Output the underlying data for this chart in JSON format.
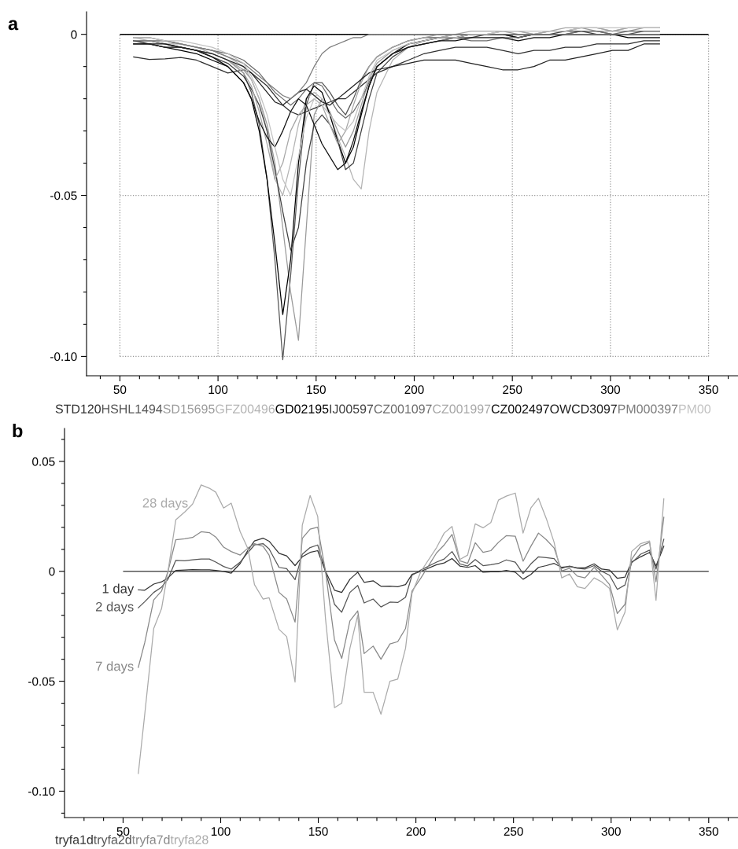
{
  "chart_data": [
    {
      "type": "line",
      "title": "a",
      "legend": "bottom",
      "grid": true,
      "xlim": [
        33,
        365
      ],
      "ylim": [
        -0.106,
        0.007
      ],
      "xticks": [
        {
          "value": 40,
          "label": null
        },
        50,
        {
          "value": 60,
          "label": null
        },
        {
          "value": 70,
          "label": null
        },
        {
          "value": 80,
          "label": null
        },
        {
          "value": 90,
          "label": null
        },
        100,
        {
          "value": 110,
          "label": null
        },
        {
          "value": 120,
          "label": null
        },
        {
          "value": 130,
          "label": null
        },
        {
          "value": 140,
          "label": null
        },
        150,
        {
          "value": 160,
          "label": null
        },
        {
          "value": 170,
          "label": null
        },
        {
          "value": 180,
          "label": null
        },
        {
          "value": 190,
          "label": null
        },
        200,
        {
          "value": 210,
          "label": null
        },
        {
          "value": 220,
          "label": null
        },
        {
          "value": 230,
          "label": null
        },
        {
          "value": 240,
          "label": null
        },
        250,
        {
          "value": 260,
          "label": null
        },
        {
          "value": 270,
          "label": null
        },
        {
          "value": 280,
          "label": null
        },
        {
          "value": 290,
          "label": null
        },
        300,
        {
          "value": 310,
          "label": null
        },
        {
          "value": 320,
          "label": null
        },
        {
          "value": 330,
          "label": null
        },
        {
          "value": 340,
          "label": null
        },
        350,
        {
          "value": 360,
          "label": null
        }
      ],
      "yticks": [
        0,
        {
          "value": -0.01,
          "label": null
        },
        {
          "value": -0.02,
          "label": null
        },
        {
          "value": -0.03,
          "label": null
        },
        {
          "value": -0.04,
          "label": null
        },
        {
          "value": -0.05,
          "label": "-0.05"
        },
        {
          "value": -0.06,
          "label": null
        },
        {
          "value": -0.07,
          "label": null
        },
        {
          "value": -0.08,
          "label": null
        },
        {
          "value": -0.09,
          "label": null
        },
        {
          "value": -0.1,
          "label": "-0.10"
        }
      ],
      "ref_lines": [
        {
          "axis": "y",
          "value": 0,
          "color": "#000000"
        }
      ],
      "x": [
        57,
        65,
        73,
        81,
        89,
        97,
        105,
        113,
        117,
        121,
        125,
        129,
        133,
        137,
        141,
        145,
        149,
        153,
        157,
        161,
        165,
        169,
        173,
        177,
        181,
        189,
        197,
        205,
        213,
        221,
        229,
        237,
        245,
        253,
        261,
        269,
        277,
        285,
        293,
        301,
        309,
        317,
        325
      ],
      "series": [
        {
          "name": "STD120",
          "color": "#303030",
          "values": [
            -0.007,
            -0.0078,
            -0.0076,
            -0.0072,
            -0.008,
            -0.01,
            -0.012,
            -0.011,
            -0.012,
            -0.014,
            -0.016,
            -0.019,
            -0.022,
            -0.024,
            -0.025,
            -0.024,
            -0.023,
            -0.022,
            -0.021,
            -0.02,
            -0.02,
            -0.018,
            -0.016,
            -0.014,
            -0.012,
            -0.01,
            -0.008,
            -0.006,
            -0.005,
            -0.004,
            -0.004,
            -0.004,
            -0.005,
            -0.006,
            -0.005,
            -0.005,
            -0.004,
            -0.004,
            -0.003,
            -0.003,
            -0.003,
            -0.002,
            -0.002
          ]
        },
        {
          "name": "HSHL1494",
          "color": "#555555",
          "values": [
            -0.002,
            -0.002,
            -0.003,
            -0.004,
            -0.005,
            -0.006,
            -0.008,
            -0.012,
            -0.018,
            -0.028,
            -0.045,
            -0.07,
            -0.101,
            -0.075,
            -0.045,
            -0.022,
            -0.015,
            -0.015,
            -0.018,
            -0.022,
            -0.025,
            -0.02,
            -0.014,
            -0.01,
            -0.007,
            -0.004,
            -0.002,
            -0.001,
            -0.001,
            0.0,
            0.0,
            0.0,
            0.0,
            -0.001,
            0.0,
            0.0,
            0.0,
            0.001,
            0.001,
            0.0,
            0.0,
            0.001,
            0.001
          ]
        },
        {
          "name": "SD15695",
          "color": "#999999",
          "values": [
            -0.003,
            -0.003,
            -0.004,
            -0.004,
            -0.005,
            -0.006,
            -0.008,
            -0.011,
            -0.014,
            -0.02,
            -0.028,
            -0.04,
            -0.06,
            -0.08,
            -0.095,
            -0.06,
            -0.025,
            -0.02,
            -0.024,
            -0.03,
            -0.035,
            -0.03,
            -0.022,
            -0.014,
            -0.009,
            -0.005,
            -0.003,
            -0.002,
            -0.001,
            -0.001,
            0.0,
            0.0,
            0.001,
            0.0,
            0.0,
            0.001,
            0.001,
            0.002,
            0.001,
            0.001,
            0.001,
            0.002,
            0.002
          ]
        },
        {
          "name": "GFZ00496",
          "color": "#b4b4b4",
          "values": [
            -0.001,
            -0.002,
            -0.002,
            -0.003,
            -0.004,
            -0.005,
            -0.007,
            -0.01,
            -0.014,
            -0.02,
            -0.03,
            -0.045,
            -0.05,
            -0.04,
            -0.028,
            -0.02,
            -0.018,
            -0.02,
            -0.025,
            -0.032,
            -0.038,
            -0.045,
            -0.048,
            -0.03,
            -0.018,
            -0.008,
            -0.004,
            -0.002,
            -0.001,
            0.0,
            0.0,
            0.0,
            0.001,
            0.001,
            0.0,
            0.001,
            0.001,
            0.002,
            0.002,
            0.001,
            0.002,
            0.002,
            0.002
          ]
        },
        {
          "name": "GD02195",
          "color": "#000000",
          "values": [
            -0.003,
            -0.003,
            -0.004,
            -0.005,
            -0.006,
            -0.008,
            -0.01,
            -0.015,
            -0.02,
            -0.03,
            -0.045,
            -0.065,
            -0.087,
            -0.07,
            -0.04,
            -0.02,
            -0.016,
            -0.018,
            -0.025,
            -0.033,
            -0.04,
            -0.035,
            -0.025,
            -0.016,
            -0.01,
            -0.006,
            -0.003,
            -0.002,
            -0.001,
            -0.001,
            0.0,
            0.0,
            0.0,
            -0.001,
            0.0,
            0.0,
            0.0,
            0.0,
            0.0,
            0.0,
            -0.001,
            -0.001,
            -0.001
          ]
        },
        {
          "name": "IJ00597",
          "color": "#404040",
          "values": [
            -0.002,
            -0.002,
            -0.003,
            -0.004,
            -0.005,
            -0.007,
            -0.009,
            -0.013,
            -0.017,
            -0.022,
            -0.03,
            -0.042,
            -0.055,
            -0.067,
            -0.06,
            -0.04,
            -0.028,
            -0.025,
            -0.028,
            -0.033,
            -0.042,
            -0.04,
            -0.03,
            -0.02,
            -0.012,
            -0.007,
            -0.004,
            -0.003,
            -0.002,
            -0.001,
            -0.001,
            0.0,
            0.0,
            0.0,
            0.0,
            0.0,
            0.001,
            0.001,
            0.0,
            0.0,
            0.0,
            0.0,
            0.0
          ]
        },
        {
          "name": "CZ001097",
          "color": "#6c6c6c",
          "values": [
            -0.001,
            -0.001,
            -0.002,
            -0.003,
            -0.004,
            -0.005,
            -0.006,
            -0.008,
            -0.01,
            -0.012,
            -0.015,
            -0.018,
            -0.02,
            -0.022,
            -0.02,
            -0.017,
            -0.015,
            -0.016,
            -0.02,
            -0.024,
            -0.026,
            -0.024,
            -0.02,
            -0.015,
            -0.01,
            -0.006,
            -0.004,
            -0.003,
            -0.002,
            -0.001,
            -0.002,
            -0.002,
            -0.001,
            -0.001,
            0.0,
            0.0,
            0.0,
            0.001,
            0.001,
            0.0,
            0.001,
            0.001,
            0.001
          ]
        },
        {
          "name": "CZ001997",
          "color": "#a6a6a6",
          "values": [
            -0.002,
            -0.002,
            -0.003,
            -0.003,
            -0.004,
            -0.006,
            -0.008,
            -0.012,
            -0.016,
            -0.024,
            -0.034,
            -0.045,
            -0.04,
            -0.03,
            -0.025,
            -0.022,
            -0.02,
            -0.022,
            -0.028,
            -0.034,
            -0.03,
            -0.022,
            -0.015,
            -0.01,
            -0.007,
            -0.004,
            -0.002,
            -0.001,
            0.0,
            0.0,
            0.001,
            0.001,
            0.001,
            0.001,
            0.0,
            0.001,
            0.002,
            0.002,
            0.002,
            0.001,
            0.002,
            0.002,
            0.002
          ]
        },
        {
          "name": "CZ002497",
          "color": "#101010",
          "values": [
            -0.002,
            -0.003,
            -0.003,
            -0.004,
            -0.005,
            -0.007,
            -0.01,
            -0.015,
            -0.02,
            -0.027,
            -0.032,
            -0.035,
            -0.03,
            -0.024,
            -0.02,
            -0.022,
            -0.028,
            -0.034,
            -0.038,
            -0.042,
            -0.04,
            -0.033,
            -0.024,
            -0.016,
            -0.01,
            -0.006,
            -0.004,
            -0.003,
            -0.002,
            -0.002,
            -0.001,
            -0.001,
            -0.001,
            -0.002,
            -0.001,
            -0.001,
            0.0,
            0.0,
            0.0,
            0.0,
            0.0,
            0.0,
            0.0
          ]
        },
        {
          "name": "OWCD3097",
          "color": "#202020",
          "values": [
            -0.003,
            -0.003,
            -0.004,
            -0.004,
            -0.005,
            -0.006,
            -0.008,
            -0.01,
            -0.012,
            -0.015,
            -0.018,
            -0.021,
            -0.022,
            -0.02,
            -0.018,
            -0.017,
            -0.019,
            -0.021,
            -0.022,
            -0.02,
            -0.018,
            -0.016,
            -0.014,
            -0.012,
            -0.011,
            -0.01,
            -0.009,
            -0.008,
            -0.008,
            -0.008,
            -0.009,
            -0.01,
            -0.011,
            -0.011,
            -0.01,
            -0.008,
            -0.008,
            -0.007,
            -0.006,
            -0.005,
            -0.005,
            -0.003,
            -0.003
          ]
        },
        {
          "name": "PM000397",
          "color": "#7c7c7c",
          "values": [
            -0.002,
            -0.002,
            -0.002,
            -0.003,
            -0.004,
            -0.005,
            -0.007,
            -0.009,
            -0.011,
            -0.013,
            -0.015,
            -0.017,
            -0.019,
            -0.02,
            -0.018,
            -0.015,
            -0.01,
            -0.006,
            -0.004,
            -0.003,
            -0.002,
            -0.001,
            -0.001,
            0.0,
            0.0,
            0.0,
            0.0,
            0.0,
            0.0,
            0.0,
            0.0,
            0.0,
            0.0,
            0.0,
            0.0,
            0.0,
            0.0,
            0.0,
            0.0,
            0.0,
            0.0,
            0.0,
            0.0
          ]
        },
        {
          "name": "PM00",
          "color": "#c2c2c2",
          "values": [
            -0.001,
            -0.001,
            -0.002,
            -0.002,
            -0.003,
            -0.004,
            -0.006,
            -0.009,
            -0.013,
            -0.018,
            -0.025,
            -0.035,
            -0.045,
            -0.05,
            -0.038,
            -0.026,
            -0.02,
            -0.022,
            -0.025,
            -0.028,
            -0.03,
            -0.027,
            -0.02,
            -0.013,
            -0.008,
            -0.005,
            -0.003,
            -0.002,
            -0.001,
            -0.001,
            0.0,
            0.0,
            0.001,
            0.001,
            0.001,
            0.001,
            0.001,
            0.002,
            0.002,
            0.002,
            0.002,
            0.002,
            0.002
          ]
        }
      ]
    },
    {
      "type": "line",
      "title": "b",
      "legend": "bottom",
      "xlim": [
        20,
        365
      ],
      "ylim": [
        -0.112,
        0.065
      ],
      "xticks": [
        {
          "value": 30,
          "label": null
        },
        {
          "value": 40,
          "label": null
        },
        50,
        {
          "value": 60,
          "label": null
        },
        {
          "value": 70,
          "label": null
        },
        {
          "value": 80,
          "label": null
        },
        {
          "value": 90,
          "label": null
        },
        100,
        {
          "value": 110,
          "label": null
        },
        {
          "value": 120,
          "label": null
        },
        {
          "value": 130,
          "label": null
        },
        {
          "value": 140,
          "label": null
        },
        150,
        {
          "value": 160,
          "label": null
        },
        {
          "value": 170,
          "label": null
        },
        {
          "value": 180,
          "label": null
        },
        {
          "value": 190,
          "label": null
        },
        200,
        {
          "value": 210,
          "label": null
        },
        {
          "value": 220,
          "label": null
        },
        {
          "value": 230,
          "label": null
        },
        {
          "value": 240,
          "label": null
        },
        250,
        {
          "value": 260,
          "label": null
        },
        {
          "value": 270,
          "label": null
        },
        {
          "value": 280,
          "label": null
        },
        {
          "value": 290,
          "label": null
        },
        300,
        {
          "value": 310,
          "label": null
        },
        {
          "value": 320,
          "label": null
        },
        {
          "value": 330,
          "label": null
        },
        {
          "value": 340,
          "label": null
        },
        350,
        {
          "value": 360,
          "label": null
        }
      ],
      "yticks": [
        {
          "value": 0.06,
          "label": null
        },
        0.05,
        {
          "value": 0.04,
          "label": null
        },
        {
          "value": 0.03,
          "label": null
        },
        {
          "value": 0.02,
          "label": null
        },
        {
          "value": 0.01,
          "label": null
        },
        0,
        {
          "value": -0.01,
          "label": null
        },
        {
          "value": -0.02,
          "label": null
        },
        {
          "value": -0.03,
          "label": null
        },
        {
          "value": -0.04,
          "label": null
        },
        {
          "value": -0.05,
          "label": "-0.05"
        },
        {
          "value": -0.06,
          "label": null
        },
        {
          "value": -0.07,
          "label": null
        },
        {
          "value": -0.08,
          "label": null
        },
        {
          "value": -0.09,
          "label": null
        },
        {
          "value": -0.1,
          "label": "-0.10"
        },
        {
          "value": -0.11,
          "label": null
        }
      ],
      "ref_lines": [
        {
          "axis": "y",
          "value": 0,
          "color": "#555555"
        }
      ],
      "annotations": [
        "1 day",
        "2 days",
        "7 days",
        {
          "text": "28 days",
          "x": 85.6,
          "y": 0.0306
        }
      ],
      "x": [
        57.8,
        61.1,
        65.7,
        69.7,
        73.0,
        77.0,
        81.6,
        85.6,
        90.0,
        94.2,
        97.5,
        101.5,
        105.4,
        110.0,
        114.0,
        117.3,
        121.7,
        124.8,
        129.9,
        133.8,
        138.1,
        141.8,
        145.8,
        149.7,
        153.7,
        158.3,
        162.0,
        166.2,
        170.2,
        173.5,
        178.1,
        182.1,
        186.7,
        190.7,
        194.7,
        198.0,
        202.6,
        210.6,
        214.5,
        218.5,
        222.5,
        226.5,
        230.4,
        234.4,
        238.4,
        242.3,
        246.3,
        250.9,
        254.9,
        258.9,
        262.8,
        266.8,
        270.8,
        274.7,
        278.7,
        282.7,
        286.6,
        291.3,
        295.2,
        299.2,
        303.2,
        307.1,
        310.5,
        315.1,
        319.7,
        323.0,
        327.0
      ],
      "series": [
        {
          "name": "tryfa1d",
          "color": "#333333",
          "values": [
            -0.0084,
            -0.0086,
            -0.0058,
            -0.0048,
            -0.003,
            0.0004,
            0.0006,
            0.0008,
            0.0007,
            0.0007,
            0.0004,
            0.0,
            -0.0008,
            0.0036,
            0.0096,
            0.0138,
            0.0151,
            0.0137,
            0.0082,
            0.007,
            0.0026,
            0.0066,
            0.0086,
            0.0094,
            0.0,
            -0.0086,
            -0.0096,
            -0.0036,
            -0.0004,
            -0.005,
            -0.0043,
            -0.0068,
            -0.0067,
            -0.007,
            -0.006,
            -0.0014,
            0.0,
            0.003,
            0.0038,
            0.0058,
            0.0024,
            0.0018,
            0.0026,
            -0.0004,
            -0.0002,
            -0.0002,
            0.0004,
            -0.0004,
            -0.0036,
            -0.0014,
            0.0018,
            0.0026,
            0.0036,
            0.0018,
            0.0022,
            0.0016,
            0.0016,
            0.0034,
            0.001,
            0.0006,
            -0.0032,
            -0.0026,
            0.0042,
            0.0066,
            0.0086,
            0.0024,
            0.0114
          ]
        },
        {
          "name": "tryfa2d",
          "color": "#555555",
          "values": [
            -0.0166,
            -0.0138,
            -0.0096,
            -0.0072,
            -0.0036,
            0.005,
            0.0048,
            0.0052,
            0.0056,
            0.0056,
            0.0042,
            0.0022,
            0.001,
            0.0042,
            0.0086,
            0.012,
            0.0126,
            0.0102,
            0.0018,
            0.0012,
            -0.0038,
            0.0078,
            0.0108,
            0.012,
            0.0,
            -0.015,
            -0.0186,
            -0.0096,
            -0.0064,
            -0.0144,
            -0.0126,
            -0.0162,
            -0.014,
            -0.0142,
            -0.0118,
            -0.0018,
            0.0006,
            0.0042,
            0.0056,
            0.009,
            0.0034,
            0.0024,
            0.0054,
            0.0026,
            0.003,
            0.0036,
            0.0052,
            0.0042,
            -0.001,
            0.0034,
            0.0066,
            0.0062,
            0.0058,
            0.0014,
            0.0024,
            0.0014,
            0.001,
            0.0026,
            0.0,
            -0.0018,
            -0.0082,
            -0.0062,
            0.0038,
            0.0078,
            0.0096,
            0.001,
            0.0146
          ]
        },
        {
          "name": "tryfa7d",
          "color": "#888888",
          "values": [
            -0.0437,
            -0.0324,
            -0.013,
            -0.009,
            0.0,
            0.0144,
            0.0148,
            0.0154,
            0.018,
            0.0176,
            0.0156,
            0.011,
            0.009,
            0.0074,
            0.0106,
            0.0126,
            0.0114,
            0.0074,
            -0.0096,
            -0.0126,
            -0.0231,
            0.015,
            0.0192,
            0.0201,
            0.0,
            -0.0312,
            -0.0396,
            -0.0226,
            -0.018,
            -0.0374,
            -0.034,
            -0.04,
            -0.033,
            -0.032,
            -0.026,
            -0.009,
            -0.003,
            0.0084,
            0.012,
            0.0168,
            0.0048,
            0.0036,
            0.013,
            0.0086,
            0.0094,
            0.0132,
            0.0162,
            0.016,
            0.0046,
            0.0114,
            0.0174,
            0.0144,
            0.0106,
            0.0002,
            0.0014,
            -0.0022,
            -0.003,
            0.0018,
            -0.0018,
            -0.006,
            -0.0192,
            -0.015,
            0.0054,
            0.0114,
            0.0132,
            -0.0048,
            0.0246
          ]
        },
        {
          "name": "tryfa28",
          "color": "#aaaaaa",
          "values": [
            -0.092,
            -0.065,
            -0.026,
            -0.017,
            0.0,
            0.0234,
            0.027,
            0.0306,
            0.0393,
            0.0378,
            0.036,
            0.0288,
            0.031,
            0.018,
            0.0102,
            -0.006,
            -0.0126,
            -0.012,
            -0.0264,
            -0.0297,
            -0.0504,
            0.021,
            0.0345,
            0.025,
            -0.0216,
            -0.062,
            -0.06,
            -0.035,
            -0.02,
            -0.055,
            -0.055,
            -0.065,
            -0.05,
            -0.049,
            -0.035,
            -0.01,
            0.0,
            0.0108,
            0.0174,
            0.0204,
            0.0054,
            0.0074,
            0.0216,
            0.0198,
            0.0222,
            0.0324,
            0.0342,
            0.0356,
            0.0174,
            0.0288,
            0.0332,
            0.024,
            0.0132,
            -0.003,
            -0.0012,
            -0.007,
            -0.0078,
            -0.003,
            -0.0048,
            -0.0078,
            -0.0266,
            -0.0186,
            0.009,
            0.0126,
            0.0138,
            -0.0132,
            0.033
          ]
        }
      ]
    }
  ]
}
